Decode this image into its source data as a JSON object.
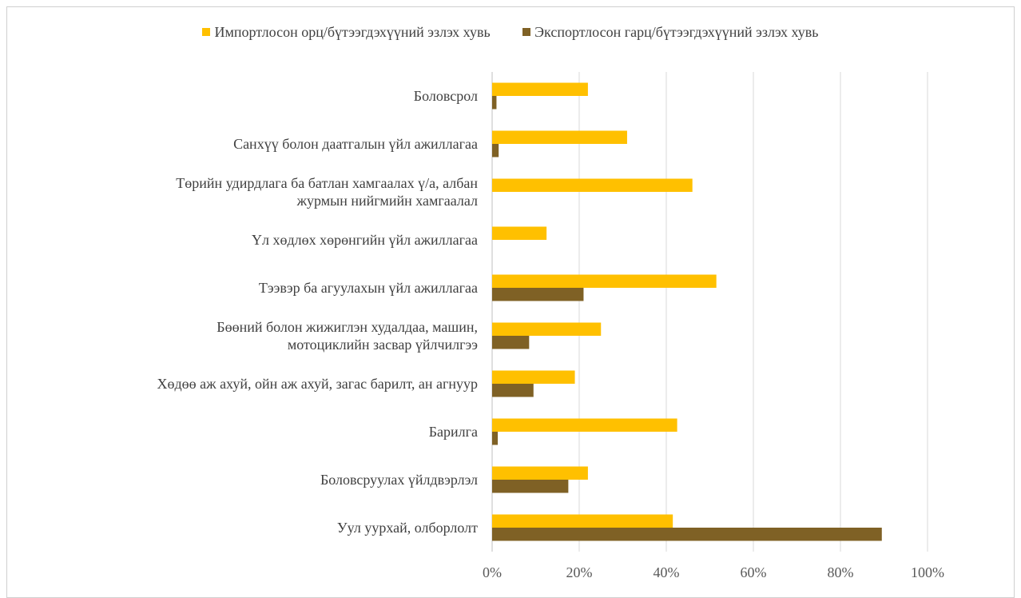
{
  "chart_data": {
    "type": "bar",
    "orientation": "horizontal",
    "title": "",
    "xlabel": "",
    "ylabel": "",
    "categories": [
      "Боловсрол",
      "Санхүү болон даатгалын үйл ажиллагаа",
      "Төрийн удирдлага ба батлан хамгаалах үйл ажиллагаа, албан журмын нийгмийн хамгаалал",
      "Үл хөдлөх хөрөнгийн үйл ажиллагаа",
      "Тээвэр ба агуулахын үйл ажиллагаа",
      "Бөөний болон жижиглэн худалдаа, машин, мотоциклийн засвар үйлчилгээ",
      "Хөдөө аж ахуй, ойн аж ахуй, загас барилт, ан агнуур",
      "Барилга",
      "Боловсруулах үйлдвэрлэл",
      "Уул уурхай, олборлолт"
    ],
    "category_label_lines": [
      [
        "Боловсрол"
      ],
      [
        "Санхүү болон даатгалын үйл ажиллагаа"
      ],
      [
        "Төрийн удирдлага ба батлан хамгаалах ү/а, албан",
        "журмын нийгмийн хамгаалал"
      ],
      [
        "Үл хөдлөх хөрөнгийн үйл ажиллагаа"
      ],
      [
        "Тээвэр ба агуулахын үйл ажиллагаа"
      ],
      [
        "Бөөний болон жижиглэн худалдаа, машин,",
        "мотоциклийн засвар үйлчилгээ"
      ],
      [
        "Хөдөө аж ахуй, ойн аж ахуй, загас барилт, ан агнуур"
      ],
      [
        "Барилга"
      ],
      [
        "Боловсруулах үйлдвэрлэл"
      ],
      [
        "Уул уурхай, олборлолт"
      ]
    ],
    "series": [
      {
        "name": "Импортлосон орц/бүтээгдэхүүний эзлэх хувь",
        "color": "#FFC000",
        "values": [
          22,
          31,
          46,
          12.5,
          51.5,
          25,
          19,
          42.5,
          22,
          41.5
        ]
      },
      {
        "name": "Экспортлосон гарц/бүтээгдэхүүний эзлэх хувь",
        "color": "#7F6125",
        "values": [
          1,
          1.5,
          0,
          0,
          21,
          8.5,
          9.5,
          1.3,
          17.5,
          89.5
        ]
      }
    ],
    "xlim": [
      0,
      100
    ],
    "xticks": [
      0,
      20,
      40,
      60,
      80,
      100
    ],
    "xtick_labels": [
      "0%",
      "20%",
      "40%",
      "60%",
      "80%",
      "100%"
    ],
    "grid": "vertical",
    "legend_position": "top"
  }
}
